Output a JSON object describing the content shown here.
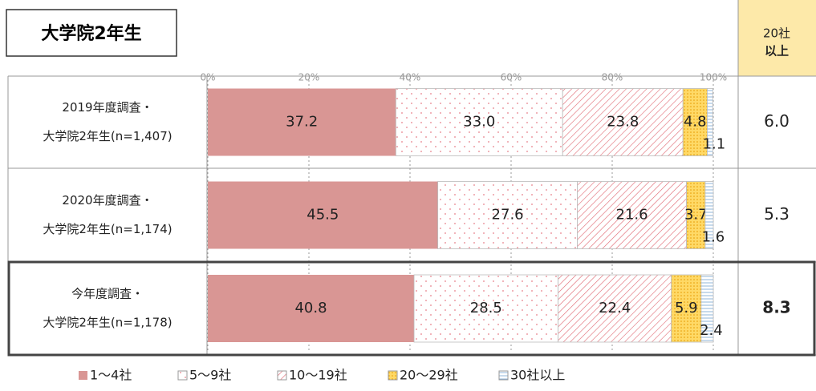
{
  "chart_data": {
    "type": "stacked_barh",
    "title": "大学院2年生",
    "categories": [
      [
        "2019年度調査・",
        "大学院2年生(n=1,407)"
      ],
      [
        "2020年度調査・",
        "大学院2年生(n=1,174)"
      ],
      [
        "今年度調査・",
        "大学院2年生(n=1,178)"
      ]
    ],
    "series": [
      {
        "name": "1〜4社",
        "color": "#d99694",
        "values": [
          37.2,
          45.5,
          40.8
        ]
      },
      {
        "name": "5〜9社",
        "color": "#e87f8a",
        "values": [
          33.0,
          27.6,
          28.5
        ],
        "value_labels": [
          "33.0",
          "27.6",
          "28.5"
        ]
      },
      {
        "name": "10〜19社",
        "color": "#e06670",
        "values": [
          23.8,
          21.6,
          22.4
        ]
      },
      {
        "name": "20〜29社",
        "color": "#ffd966",
        "values": [
          4.8,
          3.7,
          5.9
        ]
      },
      {
        "name": "30社以上",
        "color": "#8fb4d9",
        "values": [
          1.1,
          1.6,
          2.4
        ]
      }
    ],
    "xlim": [
      0,
      100
    ],
    "xticks": [
      {
        "value": 0,
        "label": "0%"
      },
      {
        "value": 20,
        "label": "20%"
      },
      {
        "value": 40,
        "label": "40%"
      },
      {
        "value": 60,
        "label": "60%"
      },
      {
        "value": 80,
        "label": "80%"
      },
      {
        "value": 100,
        "label": "100%"
      }
    ],
    "grid": true,
    "highlight_row": 2,
    "side_column": {
      "header": [
        "20社",
        "以上"
      ],
      "rows": [
        "6.0",
        "5.3",
        "8.3"
      ]
    }
  }
}
